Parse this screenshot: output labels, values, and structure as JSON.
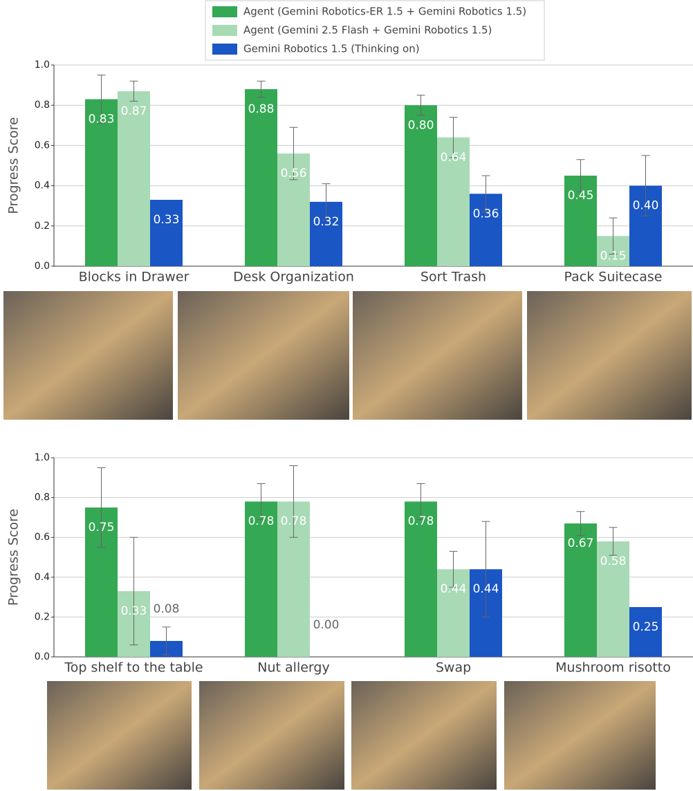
{
  "chart_data": [
    {
      "type": "bar",
      "y_label": "Progress Score",
      "categories": [
        "Blocks in Drawer",
        "Desk Organization",
        "Sort Trash",
        "Pack Suitecase"
      ],
      "series": [
        {
          "name": "Agent (Gemini Robotics-ER 1.5 + Gemini Robotics 1.5)",
          "color": "#34a853",
          "values": [
            0.83,
            0.88,
            0.8,
            0.45
          ],
          "value_labels": [
            "0.83",
            "0.88",
            "0.80",
            "0.45"
          ],
          "errors": [
            0.12,
            0.04,
            0.05,
            0.08
          ]
        },
        {
          "name": "Agent (Gemini 2.5 Flash + Gemini Robotics 1.5)",
          "color": "#a8dab5",
          "values": [
            0.87,
            0.56,
            0.64,
            0.15
          ],
          "value_labels": [
            "0.87",
            "0.56",
            "0.64",
            "0.15"
          ],
          "errors": [
            0.05,
            0.13,
            0.1,
            0.09
          ]
        },
        {
          "name": "Gemini Robotics 1.5 (Thinking on)",
          "color": "#1a56c4",
          "values": [
            0.33,
            0.32,
            0.36,
            0.4
          ],
          "value_labels": [
            "0.33",
            "0.32",
            "0.36",
            "0.40"
          ],
          "errors": [
            0,
            0.09,
            0.09,
            0.15
          ]
        }
      ],
      "ylim": [
        0,
        1
      ],
      "yticks": [
        {
          "value": 0,
          "label": "0.0"
        },
        0.2,
        0.4,
        0.6,
        0.8,
        {
          "value": 1,
          "label": "1.0"
        }
      ],
      "grid": true
    },
    {
      "type": "bar",
      "y_label": "Progress Score",
      "categories": [
        "Top shelf to the table",
        "Nut allergy",
        "Swap",
        "Mushroom risotto"
      ],
      "series": [
        {
          "name": "Agent (Gemini Robotics-ER 1.5 + Gemini Robotics 1.5)",
          "color": "#34a853",
          "values": [
            0.75,
            0.78,
            0.78,
            0.67
          ],
          "value_labels": [
            "0.75",
            "0.78",
            "0.78",
            "0.67"
          ],
          "errors": [
            0.2,
            0.09,
            0.09,
            0.06
          ]
        },
        {
          "name": "Agent (Gemini 2.5 Flash + Gemini Robotics 1.5)",
          "color": "#a8dab5",
          "values": [
            0.33,
            0.78,
            0.44,
            0.58
          ],
          "value_labels": [
            "0.33",
            "0.78",
            "0.44",
            "0.58"
          ],
          "errors": [
            0.27,
            0.18,
            0.09,
            0.07
          ]
        },
        {
          "name": "Gemini Robotics 1.5 (Thinking on)",
          "color": "#1a56c4",
          "values": [
            0.08,
            0,
            0.44,
            0.25
          ],
          "value_labels": [
            "0.08",
            "0.00",
            "0.44",
            "0.25"
          ],
          "errors": [
            0.07,
            0,
            0.24,
            0
          ]
        }
      ],
      "ylim": [
        0,
        1
      ],
      "yticks": [
        {
          "value": 0,
          "label": "0.0"
        },
        0.2,
        0.4,
        0.6,
        0.8,
        {
          "value": 1,
          "label": "1.0"
        }
      ],
      "grid": true
    }
  ]
}
